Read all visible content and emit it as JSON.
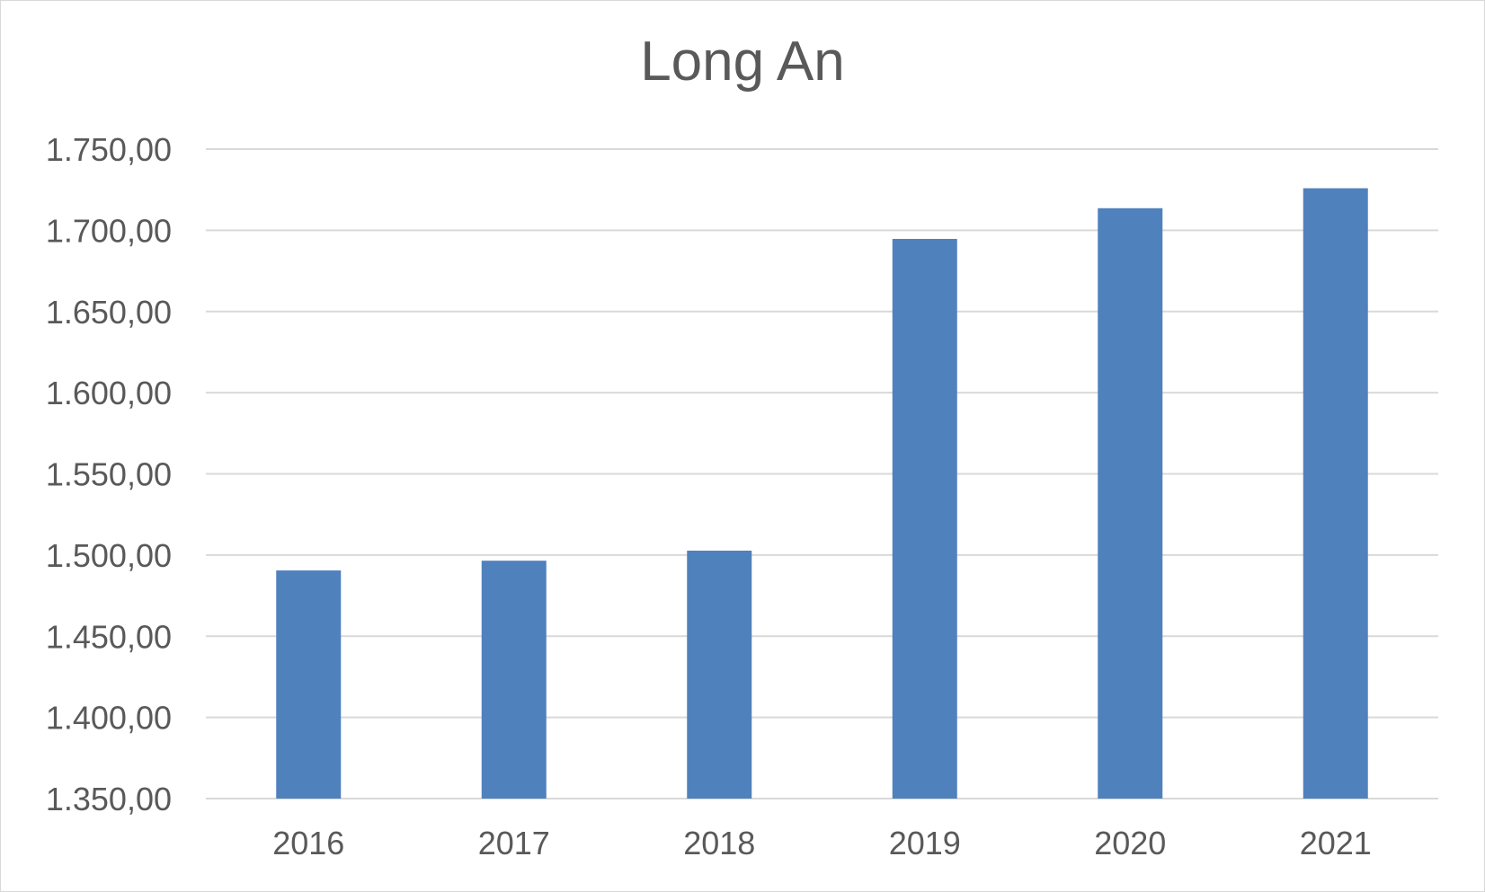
{
  "chart_data": {
    "type": "bar",
    "title": "Long An",
    "categories": [
      "2016",
      "2017",
      "2018",
      "2019",
      "2020",
      "2021"
    ],
    "values": [
      1490.5,
      1496.5,
      1502.7,
      1694.7,
      1713.6,
      1725.9
    ],
    "ylim": [
      1350,
      1750
    ],
    "yticks": [
      1350,
      1400,
      1450,
      1500,
      1550,
      1600,
      1650,
      1700,
      1750
    ],
    "ytick_labels": [
      "1.350,00",
      "1.400,00",
      "1.450,00",
      "1.500,00",
      "1.550,00",
      "1.600,00",
      "1.650,00",
      "1.700,00",
      "1.750,00"
    ],
    "xlabel": "",
    "ylabel": "",
    "grid": true,
    "legend": "none",
    "bar_color": "#4f81bd",
    "grid_color": "#d9d9d9"
  }
}
